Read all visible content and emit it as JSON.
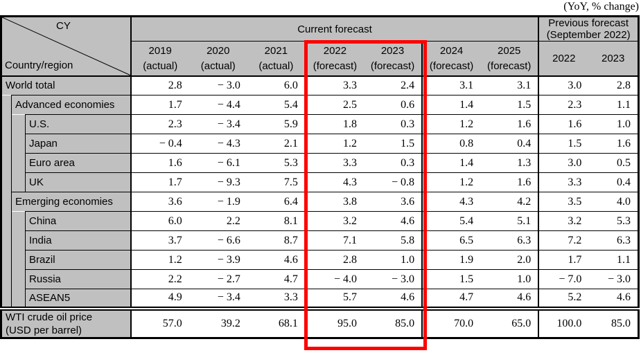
{
  "note": "(YoY, % change)",
  "corner": {
    "top": "CY",
    "bottom": "Country/region"
  },
  "sections": {
    "current": "Current forecast",
    "previous": [
      "Previous forecast",
      "(September 2022)"
    ]
  },
  "colors": {
    "header_bg": "#c0c0c0",
    "grid": "#000000",
    "highlight": "#ff0000"
  },
  "chart_data": {
    "type": "table",
    "title": "(YoY, % change)",
    "column_groups": [
      {
        "label": "Current forecast",
        "span": 7
      },
      {
        "label": "Previous forecast (September 2022)",
        "span": 2
      }
    ],
    "current_columns": [
      {
        "year": "2019",
        "tag": "(actual)"
      },
      {
        "year": "2020",
        "tag": "(actual)"
      },
      {
        "year": "2021",
        "tag": "(actual)"
      },
      {
        "year": "2022",
        "tag": "(forecast)"
      },
      {
        "year": "2023",
        "tag": "(forecast)"
      },
      {
        "year": "2024",
        "tag": "(forecast)"
      },
      {
        "year": "2025",
        "tag": "(forecast)"
      }
    ],
    "prev_columns": [
      "2022",
      "2023"
    ],
    "rows": [
      {
        "label": "World total",
        "level": 0,
        "values": [
          2.8,
          -3.0,
          6.0,
          3.3,
          2.4,
          3.1,
          3.1,
          3.0,
          2.8
        ]
      },
      {
        "label": "Advanced economies",
        "level": 1,
        "values": [
          1.7,
          -4.4,
          5.4,
          2.5,
          0.6,
          1.4,
          1.5,
          2.3,
          1.1
        ]
      },
      {
        "label": "U.S.",
        "level": 2,
        "values": [
          2.3,
          -3.4,
          5.9,
          1.8,
          0.3,
          1.2,
          1.6,
          1.6,
          1.0
        ]
      },
      {
        "label": "Japan",
        "level": 2,
        "values": [
          -0.4,
          -4.3,
          2.1,
          1.2,
          1.5,
          0.8,
          0.4,
          1.5,
          1.6
        ]
      },
      {
        "label": "Euro area",
        "level": 2,
        "values": [
          1.6,
          -6.1,
          5.3,
          3.3,
          0.3,
          1.4,
          1.3,
          3.0,
          0.5
        ]
      },
      {
        "label": "UK",
        "level": 2,
        "values": [
          1.7,
          -9.3,
          7.5,
          4.3,
          -0.8,
          1.2,
          1.6,
          3.3,
          0.4
        ]
      },
      {
        "label": "Emerging economies",
        "level": 1,
        "values": [
          3.6,
          -1.9,
          6.4,
          3.8,
          3.6,
          4.3,
          4.2,
          3.5,
          4.0
        ]
      },
      {
        "label": "China",
        "level": 2,
        "values": [
          6.0,
          2.2,
          8.1,
          3.2,
          4.6,
          5.4,
          5.1,
          3.2,
          5.3
        ]
      },
      {
        "label": "India",
        "level": 2,
        "values": [
          3.7,
          -6.6,
          8.7,
          7.1,
          5.8,
          6.5,
          6.3,
          7.2,
          6.3
        ]
      },
      {
        "label": "Brazil",
        "level": 2,
        "values": [
          1.2,
          -3.9,
          4.6,
          2.8,
          1.0,
          1.9,
          2.0,
          1.7,
          1.1
        ]
      },
      {
        "label": "Russia",
        "level": 2,
        "values": [
          2.2,
          -2.7,
          4.7,
          -4.0,
          -3.0,
          1.5,
          1.0,
          -7.0,
          -3.0
        ]
      },
      {
        "label": "ASEAN5",
        "level": 2,
        "values": [
          4.9,
          -3.4,
          3.3,
          5.7,
          4.6,
          4.7,
          4.6,
          5.2,
          4.6
        ]
      }
    ],
    "footer_row": {
      "label_lines": [
        "WTI crude oil price",
        "(USD per barrel)"
      ],
      "values": [
        57.0,
        39.2,
        68.1,
        95.0,
        85.0,
        70.0,
        65.0,
        100.0,
        85.0
      ]
    },
    "highlight": {
      "columns": [
        "2022 (forecast)",
        "2023 (forecast)"
      ],
      "color": "#ff0000"
    }
  }
}
